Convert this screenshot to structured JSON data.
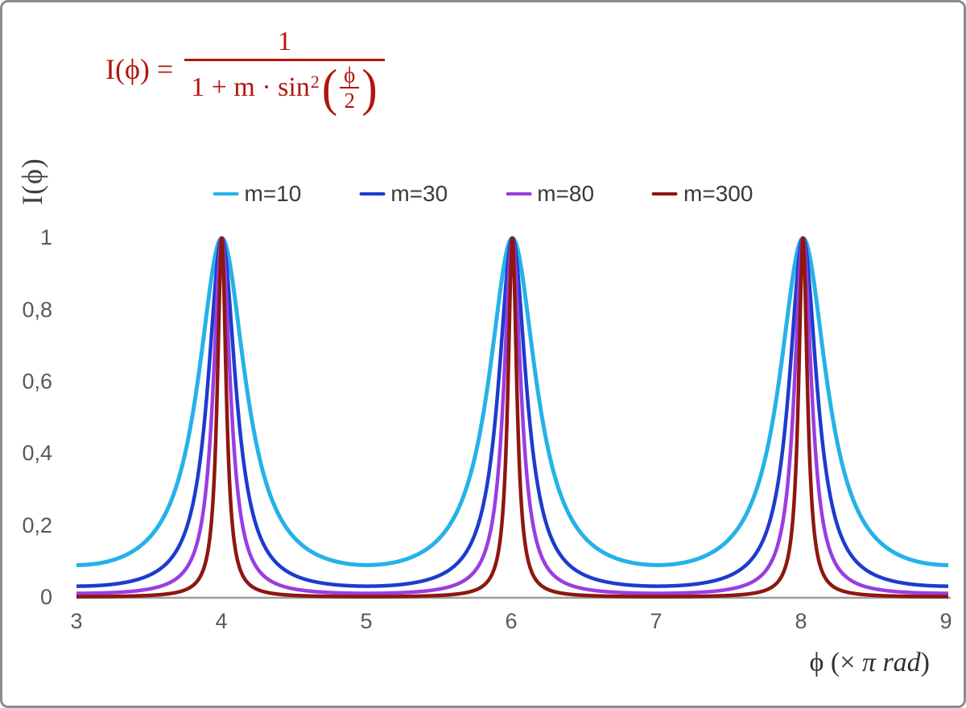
{
  "chart_data": {
    "type": "line",
    "function": "I(phi) = 1 / (1 + m * sin^2(phi/2))",
    "x_unit": "pi rad",
    "xlim": [
      3,
      9
    ],
    "ylim": [
      0,
      1
    ],
    "x_tick_labels": [
      "3",
      "4",
      "5",
      "6",
      "7",
      "8",
      "9"
    ],
    "y_tick_labels": [
      "0",
      "0,2",
      "0,4",
      "0,6",
      "0,8",
      "1"
    ],
    "y_tick_values": [
      0,
      0.2,
      0.4,
      0.6,
      0.8,
      1
    ],
    "peaks_at_x": [
      4,
      6,
      8
    ],
    "grid": false,
    "legend_position": "top-center",
    "series": [
      {
        "name": "m=10",
        "m": 10,
        "color": "#24b2e8"
      },
      {
        "name": "m=30",
        "m": 30,
        "color": "#1c3cce"
      },
      {
        "name": "m=80",
        "m": 80,
        "color": "#9a3de2"
      },
      {
        "name": "m=300",
        "m": 300,
        "color": "#8e1710"
      }
    ],
    "axis_color": "#9c9c9c",
    "tick_color": "#595959"
  },
  "formula": {
    "lhs": "I(ϕ) =",
    "numerator": "1",
    "den_prefix": "1 + m · sin",
    "den_sup": "2",
    "lparen": "(",
    "rparen": ")",
    "inner_num": "ϕ",
    "inner_den": "2",
    "color": "#b2150e"
  },
  "labels": {
    "ylabel": "I(ϕ)",
    "xlabel_phi": "ϕ  (× ",
    "xlabel_italic": "π rad",
    "xlabel_close": ")"
  }
}
